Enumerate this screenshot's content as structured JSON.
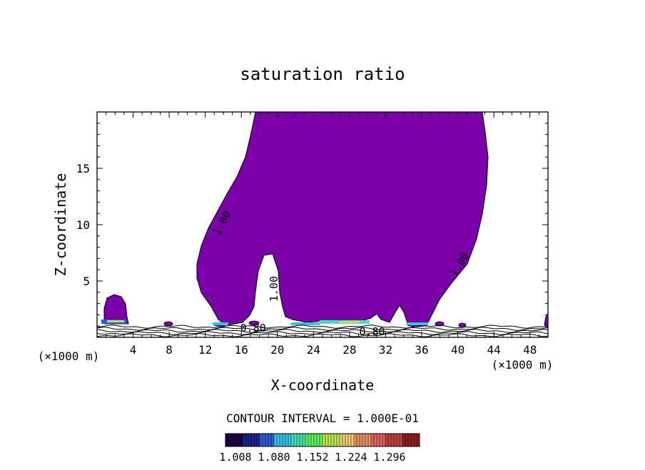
{
  "chart_data": {
    "type": "contour",
    "title": "saturation ratio",
    "xlabel": "X-coordinate",
    "ylabel": "Z-coordinate",
    "x_unit_left": "(×1000 m)",
    "x_unit_right": "(×1000 m)",
    "xlim": [
      0,
      50
    ],
    "ylim": [
      0,
      20
    ],
    "x_ticks": [
      4,
      8,
      12,
      16,
      20,
      24,
      28,
      32,
      36,
      40,
      44,
      48
    ],
    "y_ticks": [
      5,
      10,
      15
    ],
    "contour_interval_text": "CONTOUR INTERVAL = 1.000E-01",
    "contour_labels": [
      {
        "text": "1.00",
        "x": 14.2,
        "y": 10.0,
        "angle": -62
      },
      {
        "text": "1.00",
        "x": 20.0,
        "y": 4.3,
        "angle": -90
      },
      {
        "text": "1.00",
        "x": 40.5,
        "y": 6.3,
        "angle": -58
      },
      {
        "text": "0.80",
        "x": 17.3,
        "y": 0.5,
        "angle": 0
      },
      {
        "text": "0.80",
        "x": 30.5,
        "y": 0.2,
        "angle": 0
      }
    ],
    "colorbar": {
      "labels": [
        "1.008",
        "1.080",
        "1.152",
        "1.224",
        "1.296"
      ],
      "colors": [
        "#200040",
        "#20208a",
        "#2e5ad6",
        "#39c0e8",
        "#43e0b0",
        "#60f060",
        "#b8e850",
        "#e8d070",
        "#e89060",
        "#e06060",
        "#c04040",
        "#902020"
      ]
    },
    "colors": {
      "fill": "#7a00a8",
      "contour": "#000000"
    }
  }
}
